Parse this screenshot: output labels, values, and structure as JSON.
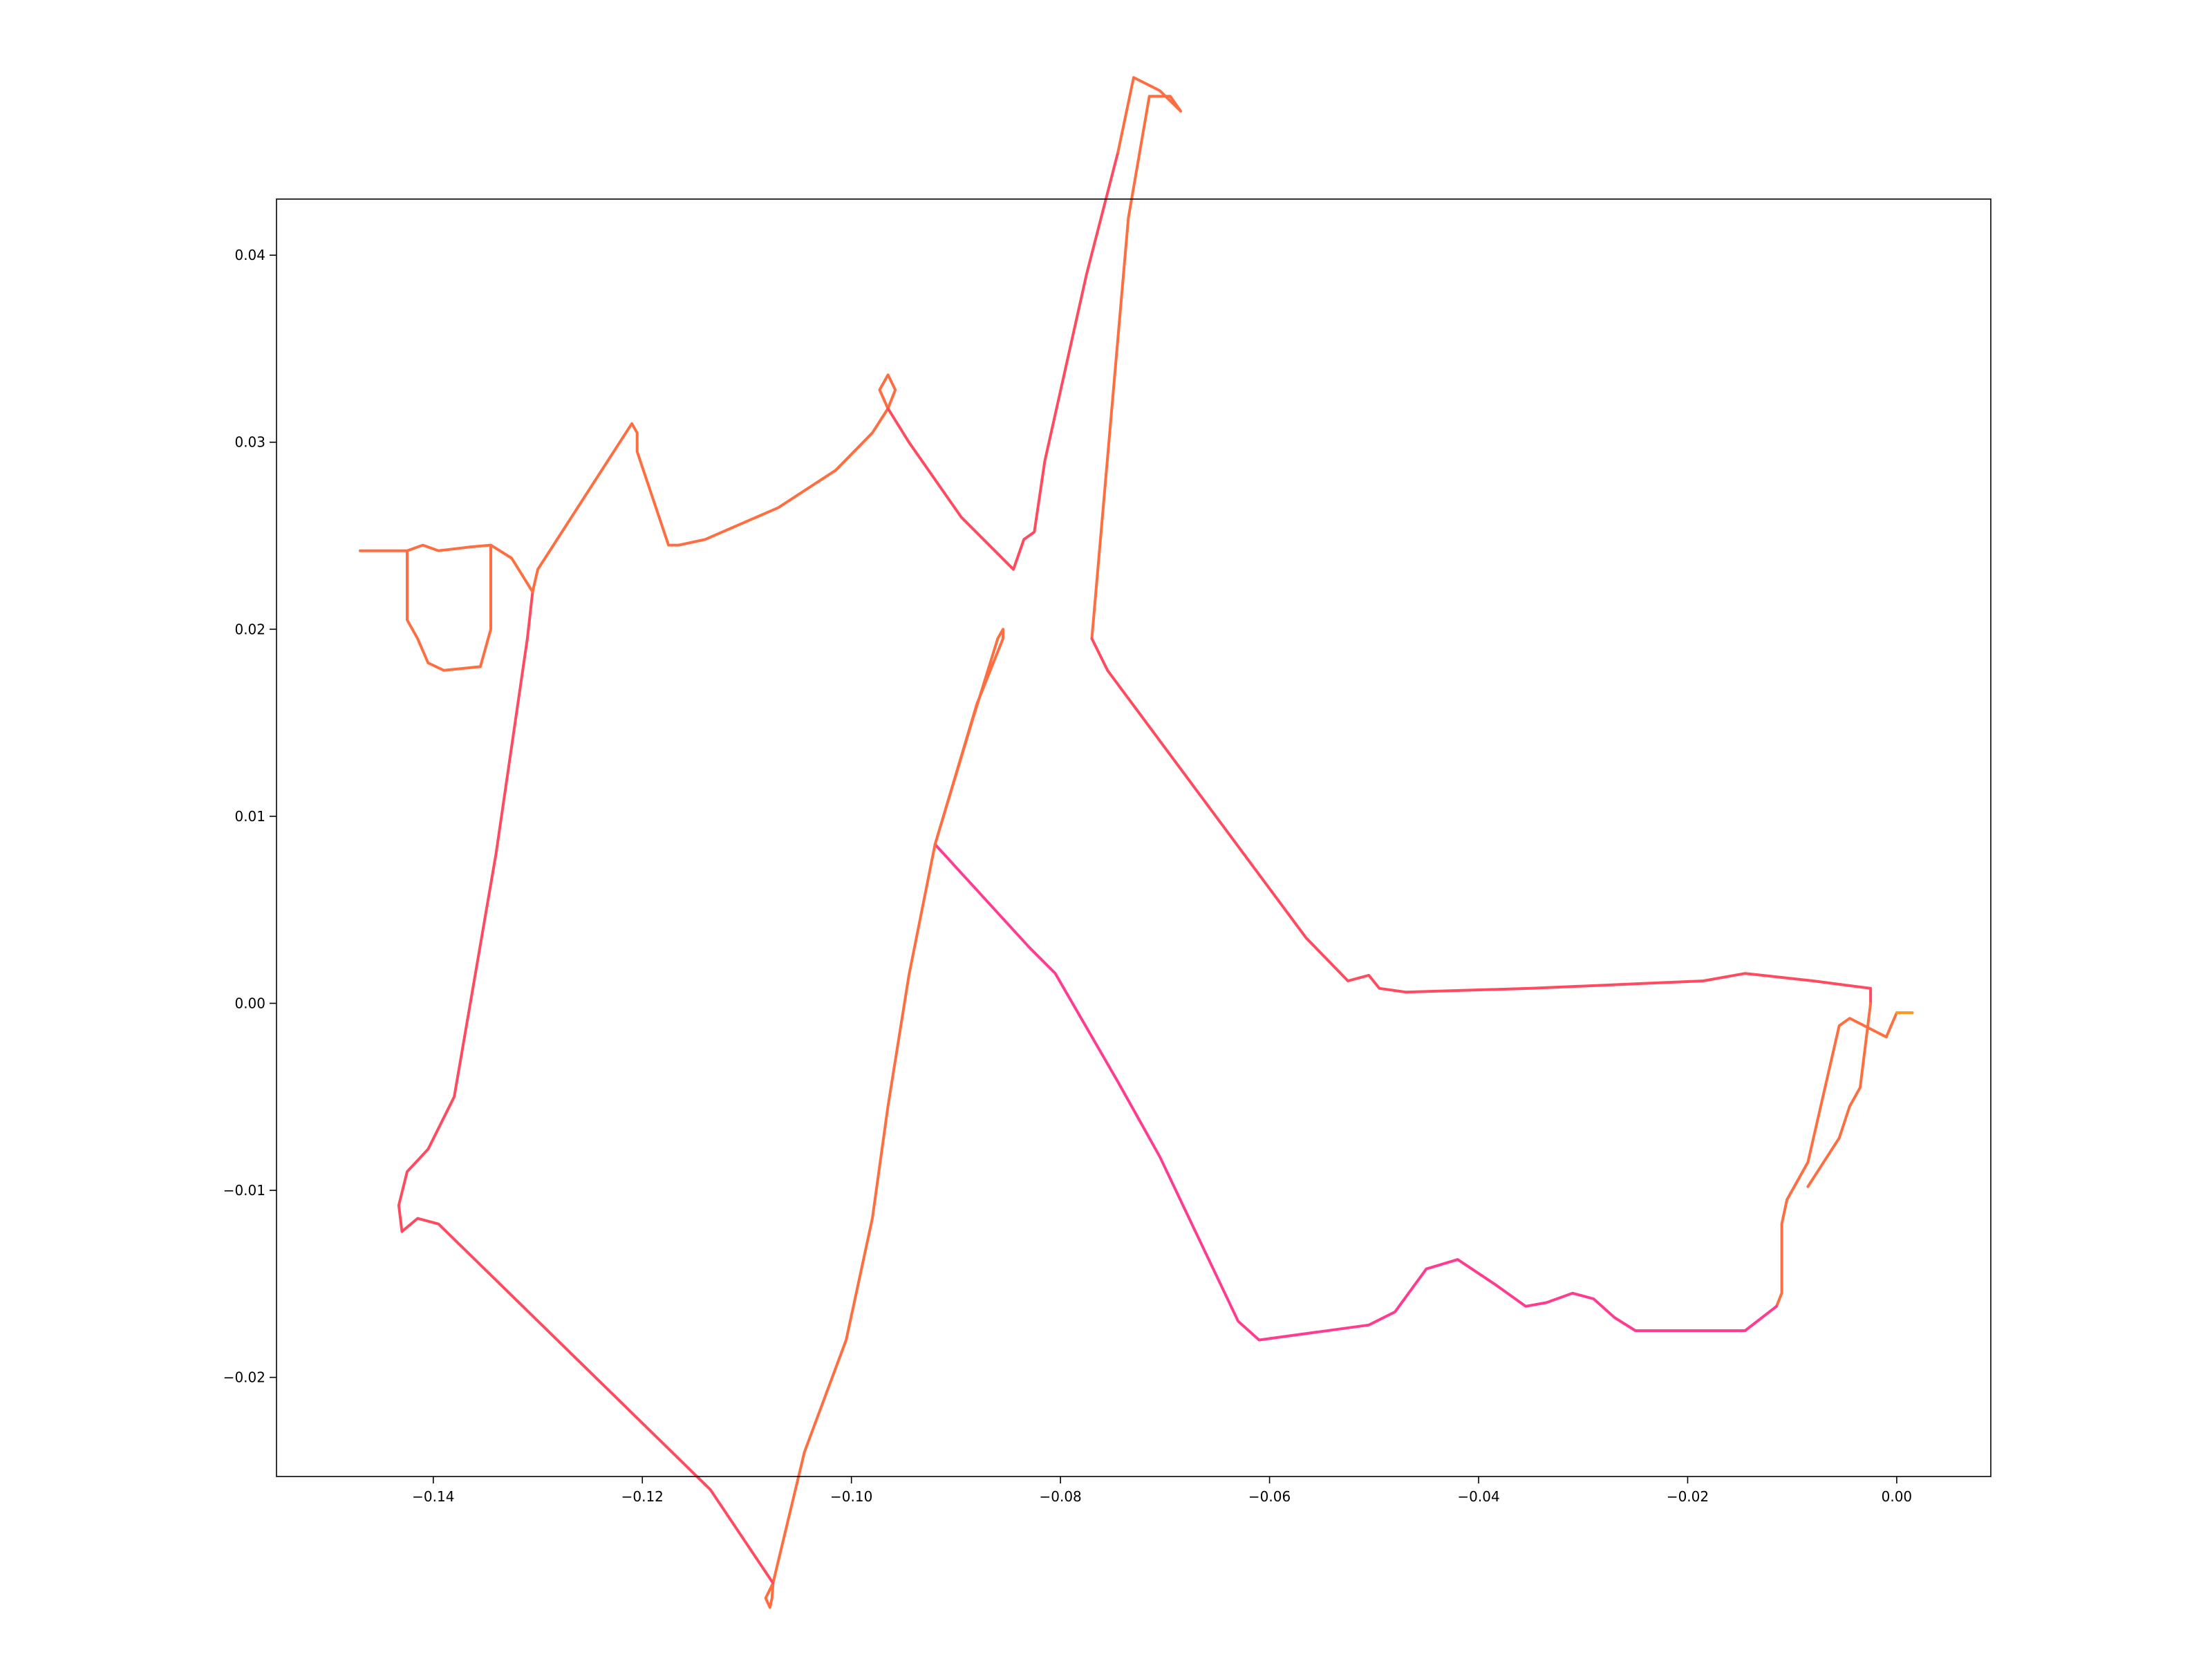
{
  "chart_data": {
    "type": "line",
    "title": "",
    "xlabel": "",
    "ylabel": "",
    "xlim": [
      -0.155,
      0.009
    ],
    "ylim": [
      -0.0253,
      0.043
    ],
    "xticks": [
      -0.14,
      -0.12,
      -0.1,
      -0.08,
      -0.06,
      -0.04,
      -0.02,
      0.0
    ],
    "yticks": [
      -0.02,
      -0.01,
      0.0,
      0.01,
      0.02,
      0.03,
      0.04
    ],
    "xtick_labels": [
      "−0.14",
      "−0.12",
      "−0.10",
      "−0.08",
      "−0.06",
      "−0.04",
      "−0.02",
      "0.00"
    ],
    "ytick_labels": [
      "−0.02",
      "−0.01",
      "0.00",
      "0.01",
      "0.02",
      "0.03",
      "0.04"
    ],
    "grid": false,
    "legend": "none",
    "colors": [
      "#ffc000",
      "#ff9a20",
      "#ff6e40",
      "#ff4a60",
      "#ff3c90"
    ],
    "segments": [
      {
        "color_level": 0.55,
        "points": [
          [
            0.0,
            -0.0005
          ],
          [
            -0.001,
            -0.0018
          ],
          [
            -0.0045,
            -0.0008
          ],
          [
            -0.0055,
            -0.0012
          ],
          [
            -0.0085,
            -0.0085
          ],
          [
            -0.0105,
            -0.0105
          ],
          [
            -0.011,
            -0.0118
          ],
          [
            -0.011,
            -0.0155
          ],
          [
            -0.0115,
            -0.0162
          ]
        ]
      },
      {
        "color_level": 0.95,
        "points": [
          [
            -0.0115,
            -0.0162
          ],
          [
            -0.0145,
            -0.0175
          ],
          [
            -0.025,
            -0.0175
          ],
          [
            -0.027,
            -0.0168
          ],
          [
            -0.029,
            -0.0158
          ],
          [
            -0.031,
            -0.0155
          ],
          [
            -0.0335,
            -0.016
          ],
          [
            -0.0355,
            -0.0162
          ],
          [
            -0.0385,
            -0.015
          ],
          [
            -0.042,
            -0.0137
          ],
          [
            -0.045,
            -0.0142
          ],
          [
            -0.048,
            -0.0165
          ],
          [
            -0.0505,
            -0.0172
          ],
          [
            -0.061,
            -0.018
          ],
          [
            -0.063,
            -0.017
          ],
          [
            -0.0705,
            -0.0082
          ],
          [
            -0.0745,
            -0.0042
          ],
          [
            -0.0805,
            0.0016
          ],
          [
            -0.083,
            0.003
          ],
          [
            -0.092,
            0.0085
          ]
        ]
      },
      {
        "color_level": 0.6,
        "points": [
          [
            -0.092,
            0.0085
          ],
          [
            -0.088,
            0.016
          ],
          [
            -0.0855,
            0.0195
          ],
          [
            -0.0855,
            0.02
          ],
          [
            -0.086,
            0.0195
          ],
          [
            -0.0885,
            0.015
          ],
          [
            -0.092,
            0.0085
          ],
          [
            -0.0945,
            0.0015
          ],
          [
            -0.0965,
            -0.0055
          ],
          [
            -0.098,
            -0.0115
          ],
          [
            -0.1005,
            -0.018
          ],
          [
            -0.1045,
            -0.024
          ],
          [
            -0.1075,
            -0.031
          ]
        ]
      },
      {
        "color_level": 0.6,
        "points": [
          [
            -0.1075,
            -0.031
          ],
          [
            -0.1082,
            -0.0318
          ],
          [
            -0.1078,
            -0.0323
          ],
          [
            -0.1076,
            -0.0318
          ],
          [
            -0.1075,
            -0.031
          ]
        ]
      },
      {
        "color_level": 0.85,
        "points": [
          [
            -0.1075,
            -0.031
          ],
          [
            -0.1135,
            -0.026
          ],
          [
            -0.1395,
            -0.0118
          ],
          [
            -0.1415,
            -0.0115
          ],
          [
            -0.143,
            -0.0122
          ],
          [
            -0.1433,
            -0.0108
          ],
          [
            -0.1425,
            -0.009
          ],
          [
            -0.1405,
            -0.0078
          ],
          [
            -0.138,
            -0.005
          ],
          [
            -0.134,
            0.008
          ],
          [
            -0.131,
            0.0195
          ],
          [
            -0.1305,
            0.022
          ]
        ]
      },
      {
        "color_level": 0.6,
        "points": [
          [
            -0.1305,
            0.022
          ],
          [
            -0.13,
            0.0232
          ],
          [
            -0.121,
            0.031
          ],
          [
            -0.1205,
            0.0305
          ],
          [
            -0.1205,
            0.0295
          ],
          [
            -0.1175,
            0.0245
          ],
          [
            -0.1165,
            0.0245
          ]
        ]
      },
      {
        "color_level": 0.4,
        "points": [
          [
            -0.1165,
            0.0245
          ],
          [
            -0.114,
            0.0248
          ],
          [
            -0.107,
            0.0265
          ],
          [
            -0.1015,
            0.0285
          ]
        ]
      },
      {
        "color_level": 0.6,
        "points": [
          [
            -0.1015,
            0.0285
          ],
          [
            -0.098,
            0.0305
          ],
          [
            -0.0965,
            0.0318
          ]
        ]
      },
      {
        "color_level": 0.6,
        "points": [
          [
            -0.0965,
            0.0318
          ],
          [
            -0.0973,
            0.0328
          ],
          [
            -0.0965,
            0.0336
          ],
          [
            -0.0958,
            0.0328
          ],
          [
            -0.0965,
            0.0318
          ]
        ]
      },
      {
        "color_level": 0.7,
        "points": [
          [
            -0.0965,
            0.0318
          ],
          [
            -0.0945,
            0.03
          ],
          [
            -0.0895,
            0.026
          ],
          [
            -0.0845,
            0.0232
          ],
          [
            -0.0835,
            0.0248
          ],
          [
            -0.0825,
            0.0252
          ],
          [
            -0.0815,
            0.029
          ],
          [
            -0.0775,
            0.039
          ],
          [
            -0.0745,
            0.0455
          ]
        ]
      },
      {
        "color_level": 0.6,
        "points": [
          [
            -0.0745,
            0.0455
          ],
          [
            -0.073,
            0.0495
          ],
          [
            -0.0705,
            0.0488
          ],
          [
            -0.0685,
            0.0477
          ],
          [
            -0.0695,
            0.0485
          ],
          [
            -0.0715,
            0.0485
          ],
          [
            -0.0735,
            0.042
          ],
          [
            -0.077,
            0.0195
          ]
        ]
      },
      {
        "color_level": 0.8,
        "points": [
          [
            -0.077,
            0.0195
          ],
          [
            -0.0755,
            0.0178
          ],
          [
            -0.0565,
            0.0035
          ],
          [
            -0.0525,
            0.0012
          ],
          [
            -0.0505,
            0.0015
          ],
          [
            -0.0495,
            0.0008
          ],
          [
            -0.047,
            0.0006
          ],
          [
            -0.035,
            0.0008
          ],
          [
            -0.0185,
            0.0012
          ],
          [
            -0.0145,
            0.0016
          ],
          [
            -0.008,
            0.0012
          ],
          [
            -0.0025,
            0.0008
          ],
          [
            -0.0025,
            0.0
          ]
        ]
      },
      {
        "color_level": 0.45,
        "points": [
          [
            -0.0025,
            0.0
          ],
          [
            -0.0035,
            -0.0045
          ],
          [
            -0.0045,
            -0.0055
          ],
          [
            -0.0055,
            -0.0072
          ],
          [
            -0.0085,
            -0.0098
          ]
        ]
      },
      {
        "color_level": 0.2,
        "points": [
          [
            0.0,
            -0.0005
          ],
          [
            0.0015,
            -0.0005
          ]
        ]
      },
      {
        "color_level": 0.6,
        "points": [
          [
            -0.1305,
            0.022
          ],
          [
            -0.1325,
            0.0238
          ],
          [
            -0.1345,
            0.0245
          ],
          [
            -0.1365,
            0.0244
          ]
        ]
      },
      {
        "color_level": 0.5,
        "points": [
          [
            -0.1365,
            0.0244
          ],
          [
            -0.1395,
            0.0242
          ],
          [
            -0.141,
            0.0245
          ],
          [
            -0.1425,
            0.0242
          ],
          [
            -0.147,
            0.0242
          ]
        ]
      },
      {
        "color_level": 0.6,
        "points": [
          [
            -0.1425,
            0.0242
          ],
          [
            -0.1425,
            0.0205
          ],
          [
            -0.1415,
            0.0195
          ],
          [
            -0.1405,
            0.0182
          ],
          [
            -0.139,
            0.0178
          ],
          [
            -0.1355,
            0.018
          ],
          [
            -0.1345,
            0.02
          ],
          [
            -0.1345,
            0.0245
          ]
        ]
      }
    ]
  }
}
